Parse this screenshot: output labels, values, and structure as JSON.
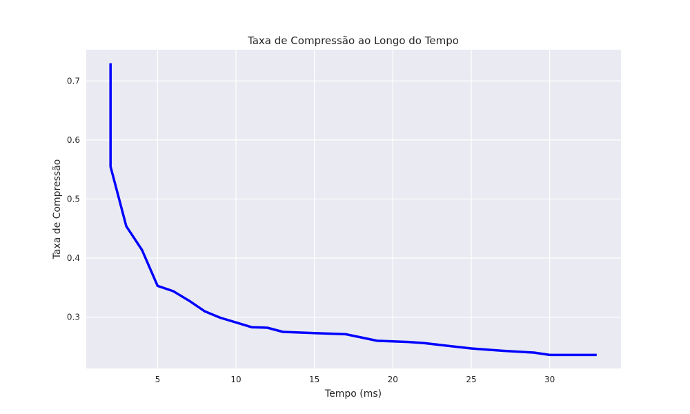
{
  "chart_data": {
    "type": "line",
    "title": "Taxa de Compressão ao Longo do Tempo",
    "xlabel": "Tempo (ms)",
    "ylabel": "Taxa de Compressão",
    "xlim": [
      0.45,
      34.55
    ],
    "ylim": [
      0.2131,
      0.7529
    ],
    "xticks": [
      5,
      10,
      15,
      20,
      25,
      30
    ],
    "yticks": [
      0.3,
      0.4,
      0.5,
      0.6,
      0.7
    ],
    "grid": true,
    "series": [
      {
        "color": "#0000ff",
        "x": [
          2,
          2,
          3,
          4,
          5,
          6,
          7,
          8,
          9,
          10,
          11,
          12,
          13,
          15,
          17,
          19,
          21,
          22,
          25,
          27,
          29,
          30,
          33
        ],
        "y": [
          0.73,
          0.555,
          0.454,
          0.414,
          0.353,
          0.344,
          0.328,
          0.31,
          0.299,
          0.291,
          0.283,
          0.282,
          0.275,
          0.273,
          0.271,
          0.26,
          0.258,
          0.256,
          0.247,
          0.243,
          0.24,
          0.236,
          0.236
        ]
      }
    ]
  }
}
